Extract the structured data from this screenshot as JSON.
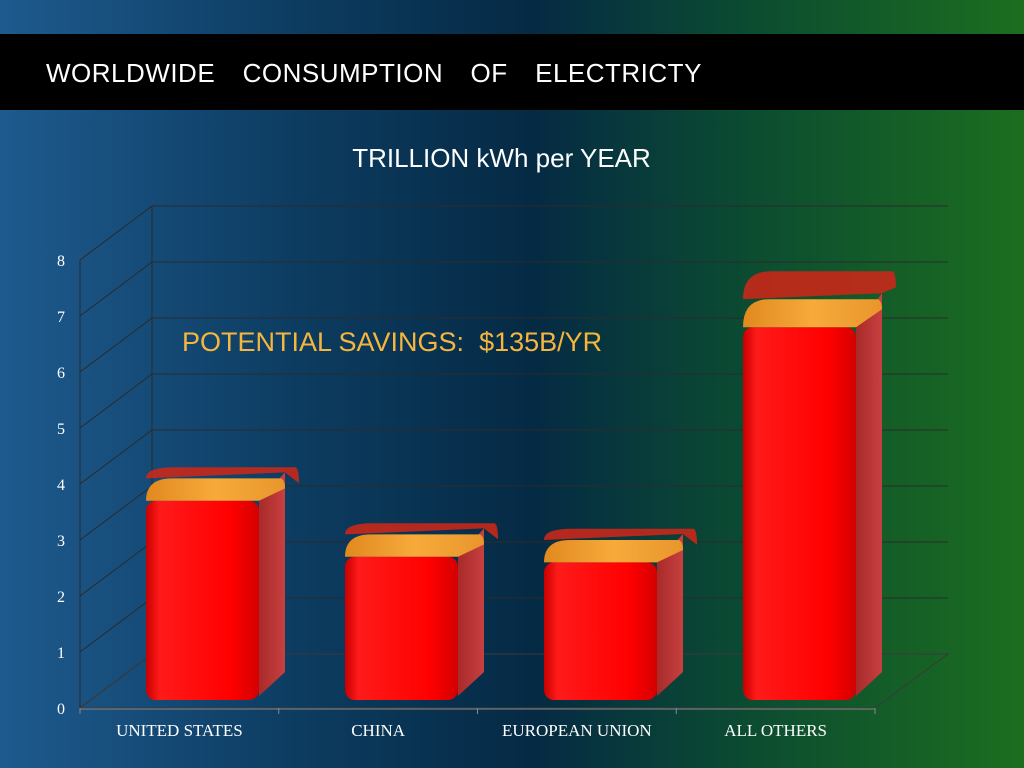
{
  "slide": {
    "title": "WORLDWIDE  CONSUMPTION  OF  ELECTRICTY",
    "annotation": "POTENTIAL SAVINGS:  $135B/YR"
  },
  "chart_data": {
    "type": "bar",
    "title": "TRILLION kWh per YEAR",
    "categories": [
      "UNITED STATES",
      "CHINA",
      "EUROPEAN UNION",
      "ALL OTHERS"
    ],
    "series": [
      {
        "values": [
          3.7,
          2.7,
          2.6,
          6.8
        ],
        "color": "#ff0000"
      },
      {
        "values": [
          0.4,
          0.4,
          0.4,
          0.5
        ],
        "color": "#f5a838"
      },
      {
        "values": [
          0.2,
          0.2,
          0.2,
          0.5
        ],
        "color": "#c8281a"
      }
    ],
    "stacked": true,
    "ylim": [
      0,
      8
    ],
    "yticks": [
      "0",
      "1",
      "2",
      "3",
      "4",
      "5",
      "6",
      "7",
      "8"
    ],
    "grid": true,
    "style": "3d"
  }
}
